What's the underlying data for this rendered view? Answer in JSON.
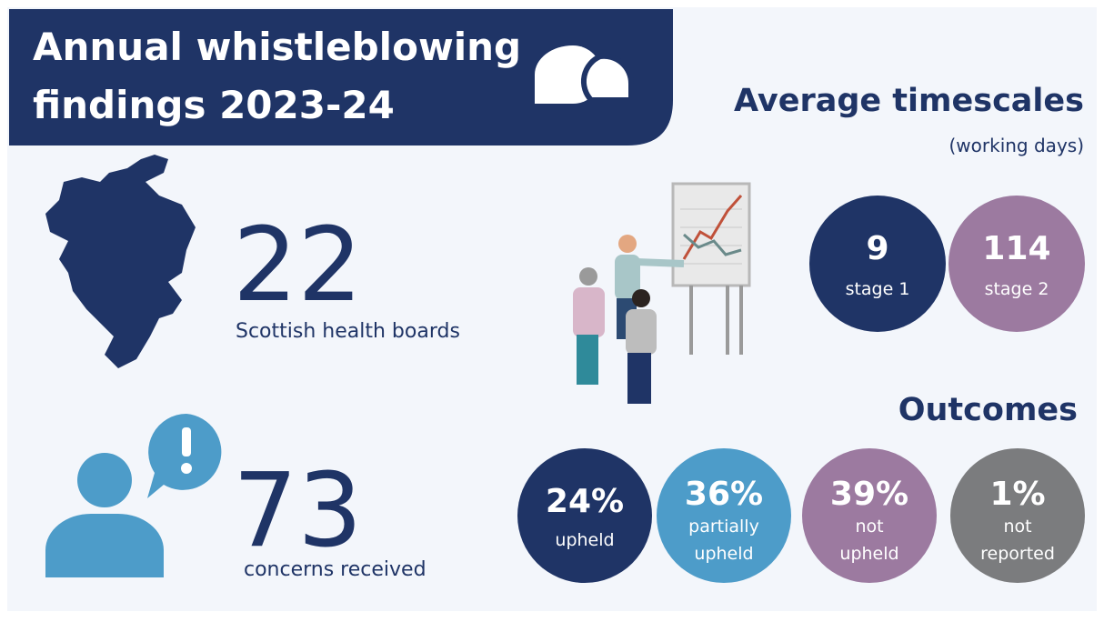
{
  "header": {
    "title": [
      "Annual whistleblowing",
      "findings 2023-24"
    ]
  },
  "boards": {
    "number": "22",
    "label": "Scottish health boards"
  },
  "concerns": {
    "number": "73",
    "label": "concerns received"
  },
  "timescales": {
    "title": "Average timescales",
    "subtitle": "(working days)",
    "items": [
      {
        "number": "9",
        "label": "stage 1"
      },
      {
        "number": "114",
        "label": "stage 2"
      }
    ]
  },
  "outcomes": {
    "title": "Outcomes",
    "items": [
      {
        "number": "24%",
        "label": [
          "upheld"
        ]
      },
      {
        "number": "36%",
        "label": [
          "partially",
          "upheld"
        ]
      },
      {
        "number": "39%",
        "label": [
          "not",
          "upheld"
        ]
      },
      {
        "number": "1%",
        "label": [
          "not",
          "reported"
        ]
      }
    ]
  }
}
